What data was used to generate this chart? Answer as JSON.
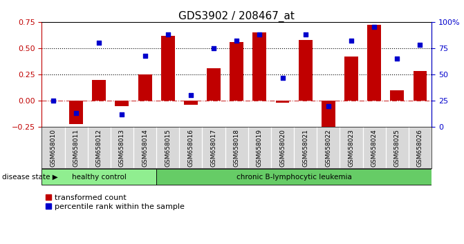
{
  "title": "GDS3902 / 208467_at",
  "samples": [
    "GSM658010",
    "GSM658011",
    "GSM658012",
    "GSM658013",
    "GSM658014",
    "GSM658015",
    "GSM658016",
    "GSM658017",
    "GSM658018",
    "GSM658019",
    "GSM658020",
    "GSM658021",
    "GSM658022",
    "GSM658023",
    "GSM658024",
    "GSM658025",
    "GSM658026"
  ],
  "bar_values": [
    0.0,
    -0.22,
    0.2,
    -0.05,
    0.25,
    0.62,
    -0.04,
    0.31,
    0.56,
    0.65,
    -0.02,
    0.58,
    -0.3,
    0.42,
    0.72,
    0.1,
    0.28
  ],
  "dot_values": [
    25,
    13,
    80,
    12,
    68,
    88,
    30,
    75,
    82,
    88,
    47,
    88,
    20,
    82,
    95,
    65,
    78
  ],
  "ylim_left": [
    -0.25,
    0.75
  ],
  "ylim_right": [
    0,
    100
  ],
  "yticks_left": [
    -0.25,
    0.0,
    0.25,
    0.5,
    0.75
  ],
  "yticks_right": [
    0,
    25,
    50,
    75,
    100
  ],
  "hline_values": [
    0.25,
    0.5
  ],
  "hline_zero": 0.0,
  "bar_color": "#c00000",
  "dot_color": "#0000cc",
  "healthy_count": 5,
  "healthy_color": "#90ee90",
  "leukemia_color": "#66cc66",
  "healthy_label": "healthy control",
  "leukemia_label": "chronic B-lymphocytic leukemia",
  "disease_label": "disease state",
  "legend1": "transformed count",
  "legend2": "percentile rank within the sample",
  "title_fontsize": 11,
  "axis_label_color_left": "#c00000",
  "axis_label_color_right": "#0000cc"
}
